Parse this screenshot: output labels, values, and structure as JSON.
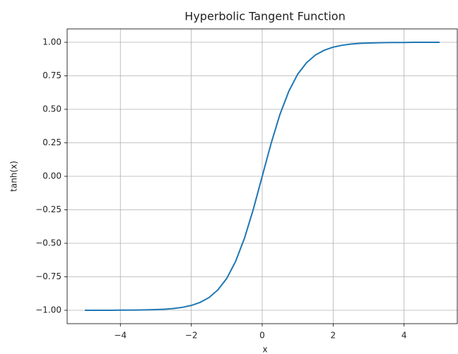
{
  "chart_data": {
    "type": "line",
    "title": "Hyperbolic Tangent Function",
    "x_label": "x",
    "y_label": "tanh(x)",
    "x": [
      -5,
      -4.75,
      -4.5,
      -4.25,
      -4,
      -3.75,
      -3.5,
      -3.25,
      -3,
      -2.75,
      -2.5,
      -2.25,
      -2,
      -1.75,
      -1.5,
      -1.25,
      -1,
      -0.75,
      -0.5,
      -0.25,
      0,
      0.25,
      0.5,
      0.75,
      1,
      1.25,
      1.5,
      1.75,
      2,
      2.25,
      2.5,
      2.75,
      3,
      3.25,
      3.5,
      3.75,
      4,
      4.25,
      4.5,
      4.75,
      5
    ],
    "values": [
      -1.0,
      -1.0,
      -1.0,
      -1.0,
      -0.999,
      -0.999,
      -0.998,
      -0.997,
      -0.995,
      -0.992,
      -0.987,
      -0.978,
      -0.964,
      -0.941,
      -0.905,
      -0.848,
      -0.762,
      -0.635,
      -0.462,
      -0.245,
      0,
      0.245,
      0.462,
      0.635,
      0.762,
      0.848,
      0.905,
      0.941,
      0.964,
      0.978,
      0.987,
      0.992,
      0.995,
      0.997,
      0.998,
      0.999,
      0.999,
      1.0,
      1.0,
      1.0,
      1.0
    ],
    "color": "#1f77b4",
    "xlim": [
      -5.5,
      5.5
    ],
    "ylim": [
      -1.1,
      1.1
    ],
    "xticks": [
      {
        "value": -4,
        "label": "−4"
      },
      {
        "value": -2,
        "label": "−2"
      },
      0,
      2,
      4
    ],
    "yticks": [
      {
        "value": -1,
        "label": "−1.00"
      },
      {
        "value": -0.75,
        "label": "−0.75"
      },
      {
        "value": -0.5,
        "label": "−0.50"
      },
      {
        "value": -0.25,
        "label": "−0.25"
      },
      {
        "value": 0,
        "label": "0.00"
      },
      {
        "value": 0.25,
        "label": "0.25"
      },
      {
        "value": 0.5,
        "label": "0.50"
      },
      {
        "value": 0.75,
        "label": "0.75"
      },
      {
        "value": 1,
        "label": "1.00"
      }
    ],
    "grid": true
  }
}
